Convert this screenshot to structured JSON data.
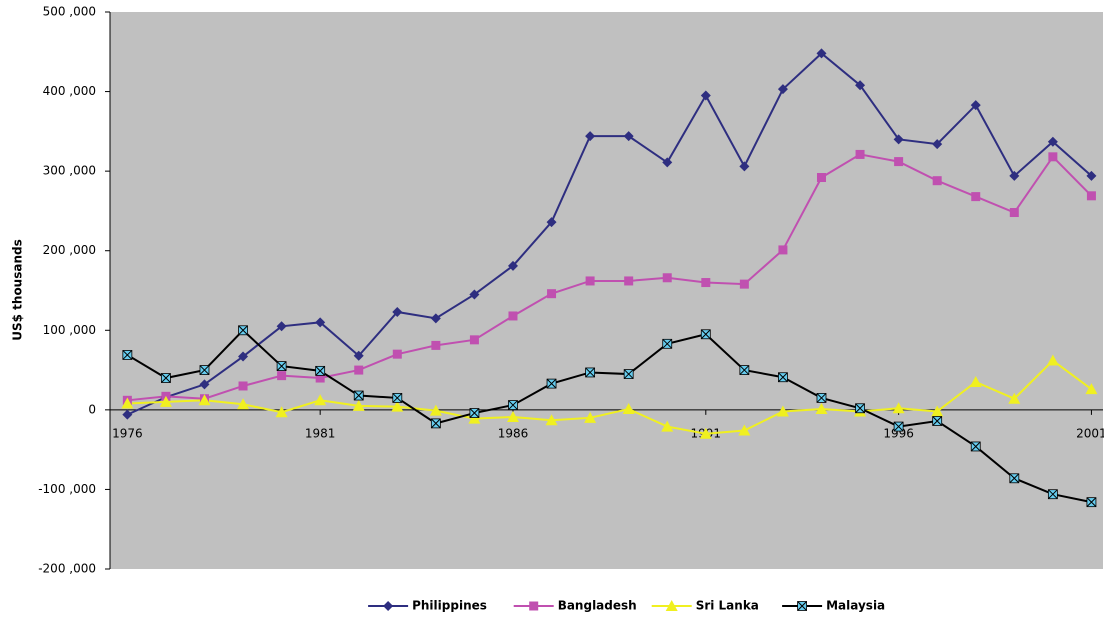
{
  "chart_data": {
    "type": "line",
    "y_label": "US$ thousands",
    "x": [
      1976,
      1977,
      1978,
      1979,
      1980,
      1981,
      1982,
      1983,
      1984,
      1985,
      1986,
      1987,
      1988,
      1989,
      1990,
      1991,
      1992,
      1993,
      1994,
      1995,
      1996,
      1997,
      1998,
      1999,
      2000,
      2001
    ],
    "xlim": [
      1975.55,
      2001.3
    ],
    "xticks": [
      1976,
      1981,
      1986,
      1991,
      1996,
      2001
    ],
    "ylim": [
      -200000,
      500000
    ],
    "yticks": [
      {
        "value": -200000,
        "label": "-200 ,000"
      },
      {
        "value": -100000,
        "label": "-100 ,000"
      },
      0,
      {
        "value": 100000,
        "label": "100 ,000"
      },
      {
        "value": 200000,
        "label": "200 ,000"
      },
      {
        "value": 300000,
        "label": "300 ,000"
      },
      {
        "value": 400000,
        "label": "400 ,000"
      },
      {
        "value": 500000,
        "label": "500 ,000"
      }
    ],
    "plot_background": "#c0c0c0",
    "legend": "bottom",
    "series": [
      {
        "name": "Philippines",
        "color": "#2e2e80",
        "marker": "diamond",
        "marker_color": "#2e2e80",
        "values": [
          -6000,
          16000,
          32000,
          67000,
          105000,
          110000,
          68000,
          123000,
          115000,
          145000,
          181000,
          236000,
          344000,
          344000,
          311000,
          395000,
          306000,
          403000,
          448000,
          408000,
          340000,
          334000,
          383000,
          294000,
          337000,
          294000
        ]
      },
      {
        "name": "Bangladesh",
        "color": "#c050b0",
        "marker": "square",
        "marker_color": "#c050b0",
        "values": [
          12000,
          17000,
          14000,
          30000,
          43000,
          40000,
          50000,
          70000,
          81000,
          88000,
          118000,
          146000,
          162000,
          162000,
          166000,
          160000,
          158000,
          201000,
          292000,
          321000,
          312000,
          288000,
          268000,
          248000,
          318000,
          269000
        ]
      },
      {
        "name": "Sri Lanka",
        "color": "#f0f020",
        "marker": "triangle",
        "marker_color": "#f0f020",
        "values": [
          8000,
          10000,
          12000,
          7000,
          -3000,
          12000,
          5000,
          4000,
          -1000,
          -11000,
          -9000,
          -13000,
          -10000,
          1000,
          -21000,
          -30000,
          -26000,
          -2000,
          1000,
          -2000,
          2000,
          -2000,
          35000,
          14000,
          62000,
          26000
        ]
      },
      {
        "name": "Malaysia",
        "color": "#000000",
        "marker": "xsquare",
        "marker_color": "#66ccee",
        "values": [
          69000,
          40000,
          50000,
          100000,
          55000,
          49000,
          18000,
          15000,
          -17000,
          -4000,
          6000,
          33000,
          47000,
          45000,
          83000,
          95000,
          50000,
          41000,
          15000,
          2000,
          -21000,
          -14000,
          -46000,
          -86000,
          -106000,
          -116000
        ]
      }
    ]
  }
}
